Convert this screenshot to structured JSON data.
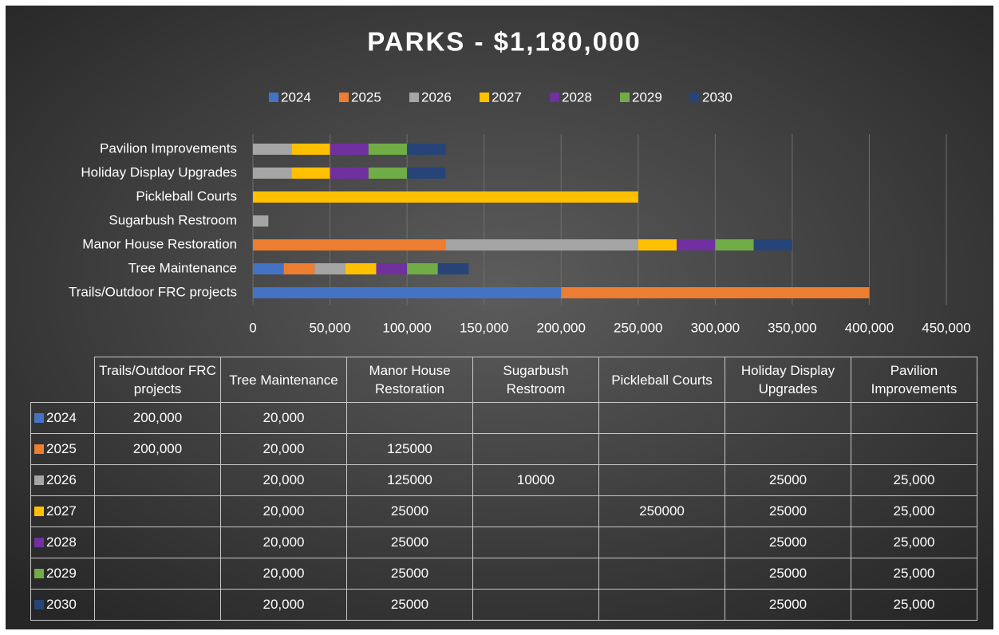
{
  "chart_data": {
    "type": "bar",
    "orientation": "horizontal",
    "stacked": true,
    "title": "PARKS - $1,180,000",
    "categories": [
      "Trails/Outdoor FRC projects",
      "Tree Maintenance",
      "Manor House Restoration",
      "Sugarbush Restroom",
      "Pickleball Courts",
      "Holiday Display Upgrades",
      "Pavilion Improvements"
    ],
    "series": [
      {
        "name": "2024",
        "color": "#4472c4",
        "values": [
          200000,
          20000,
          null,
          null,
          null,
          null,
          null
        ],
        "value_labels": [
          "200,000",
          "20,000",
          null,
          null,
          null,
          null,
          null
        ]
      },
      {
        "name": "2025",
        "color": "#ed7d31",
        "values": [
          200000,
          20000,
          125000,
          null,
          null,
          null,
          null
        ],
        "value_labels": [
          "200,000",
          "20,000",
          "125000",
          null,
          null,
          null,
          null
        ]
      },
      {
        "name": "2026",
        "color": "#a5a5a5",
        "values": [
          null,
          20000,
          125000,
          10000,
          null,
          25000,
          25000
        ],
        "value_labels": [
          null,
          "20,000",
          "125000",
          "10000",
          null,
          "25000",
          "25,000"
        ]
      },
      {
        "name": "2027",
        "color": "#ffc000",
        "values": [
          null,
          20000,
          25000,
          null,
          250000,
          25000,
          25000
        ],
        "value_labels": [
          null,
          "20,000",
          "25000",
          null,
          "250000",
          "25000",
          "25,000"
        ]
      },
      {
        "name": "2028",
        "color": "#7030a0",
        "values": [
          null,
          20000,
          25000,
          null,
          null,
          25000,
          25000
        ],
        "value_labels": [
          null,
          "20,000",
          "25000",
          null,
          null,
          "25000",
          "25,000"
        ]
      },
      {
        "name": "2029",
        "color": "#70ad47",
        "values": [
          null,
          20000,
          25000,
          null,
          null,
          25000,
          25000
        ],
        "value_labels": [
          null,
          "20,000",
          "25000",
          null,
          null,
          "25000",
          "25,000"
        ]
      },
      {
        "name": "2030",
        "color": "#264478",
        "values": [
          null,
          20000,
          25000,
          null,
          null,
          25000,
          25000
        ],
        "value_labels": [
          null,
          "20,000",
          "25000",
          null,
          null,
          "25000",
          "25,000"
        ]
      }
    ],
    "xlim": [
      0,
      450000
    ],
    "xticks": [
      0,
      {
        "value": 50000,
        "label": "50,000"
      },
      {
        "value": 100000,
        "label": "100,000"
      },
      {
        "value": 150000,
        "label": "150,000"
      },
      {
        "value": 200000,
        "label": "200,000"
      },
      {
        "value": 250000,
        "label": "250,000"
      },
      {
        "value": 300000,
        "label": "300,000"
      },
      {
        "value": 350000,
        "label": "350,000"
      },
      {
        "value": 400000,
        "label": "400,000"
      },
      {
        "value": 450000,
        "label": "450,000"
      }
    ],
    "grid": true,
    "legend": "top",
    "data_table": true
  }
}
